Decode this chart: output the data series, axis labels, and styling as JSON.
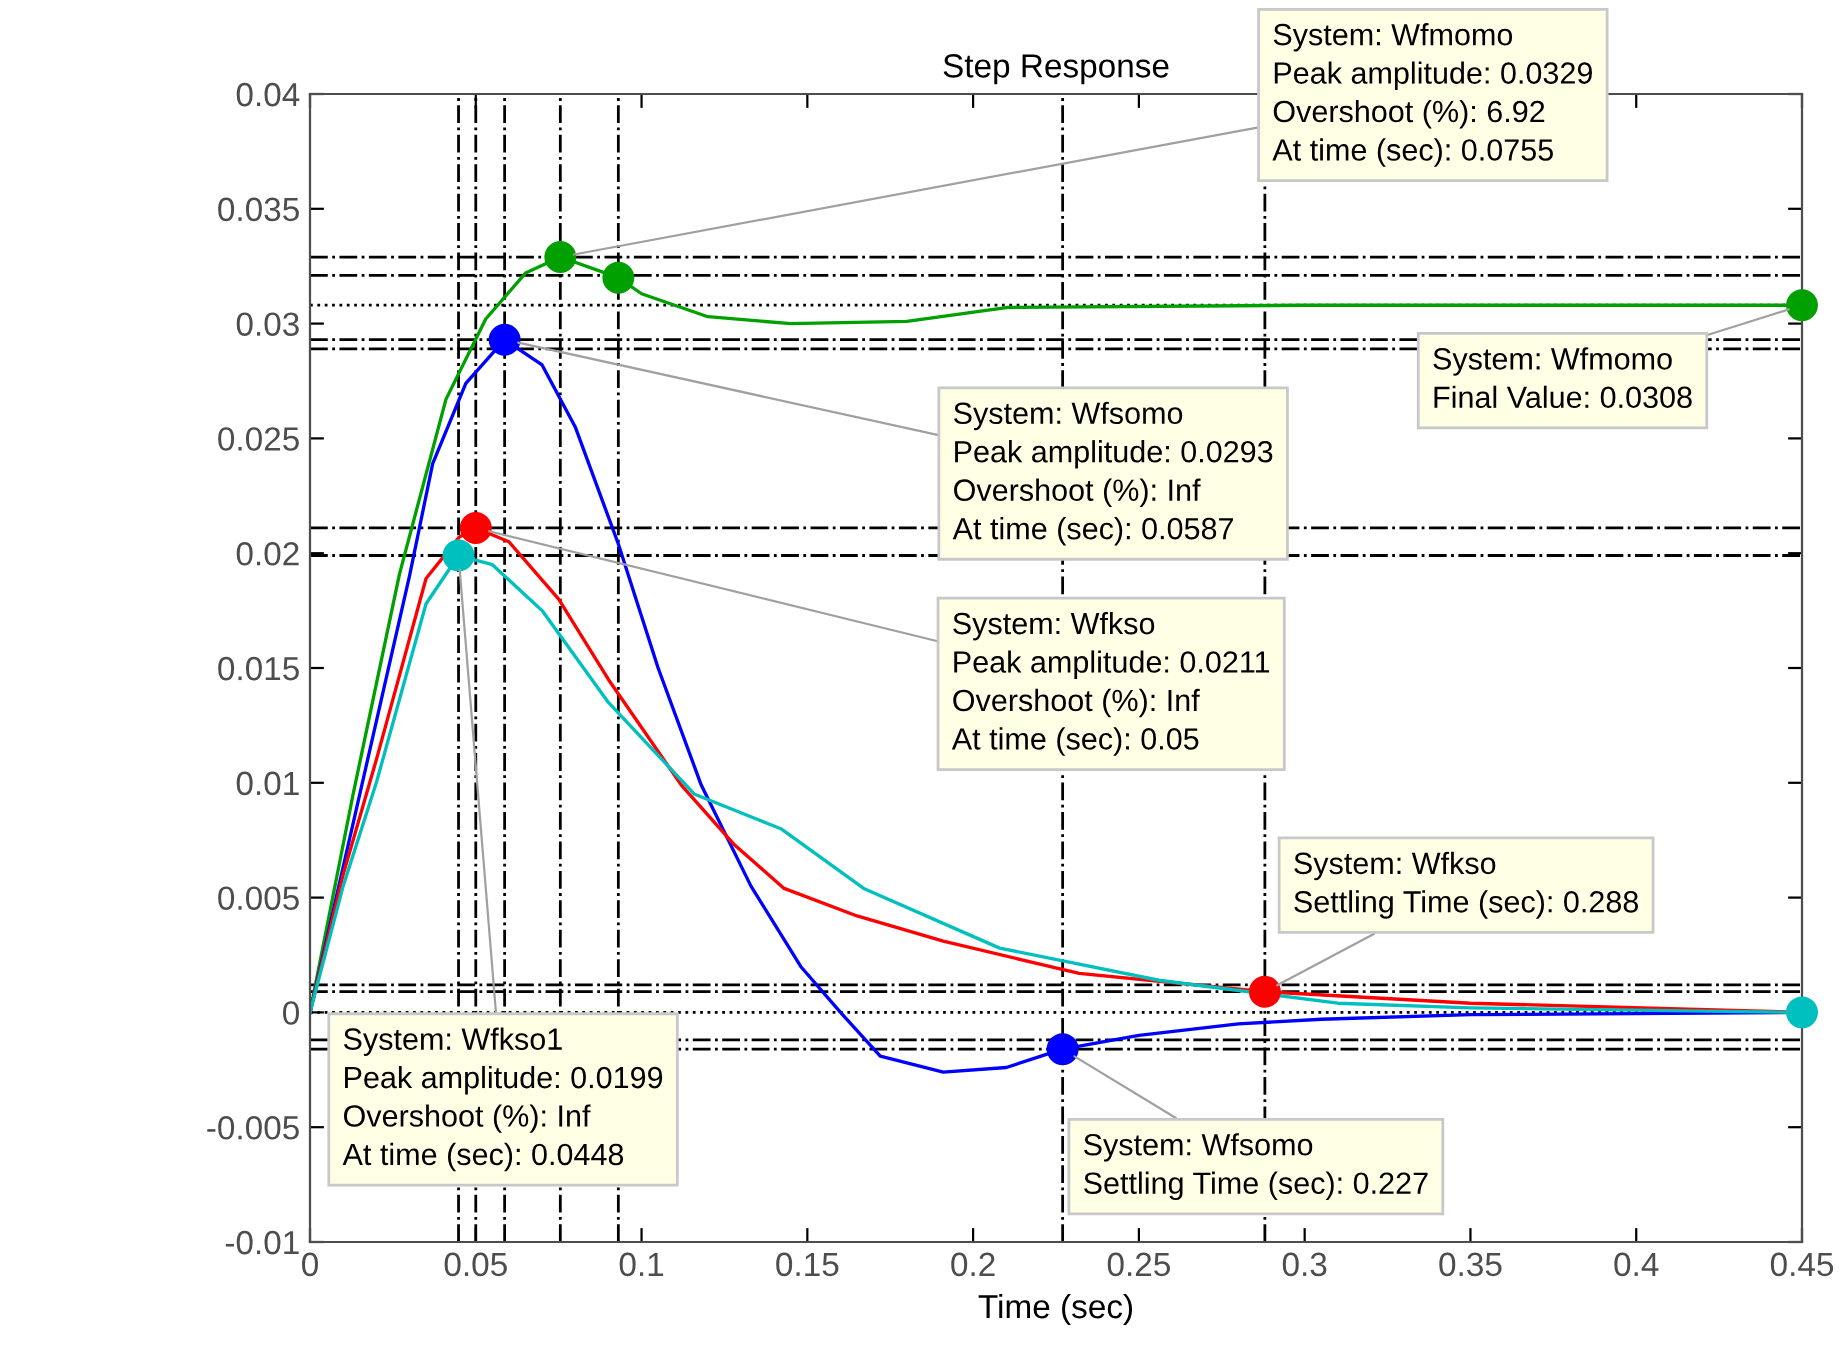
{
  "chart_data": {
    "type": "line",
    "title": "Step Response",
    "xlabel": "Time (sec)",
    "xlim": [
      0,
      0.45
    ],
    "xticks": [
      0,
      0.05,
      0.1,
      0.15,
      0.2,
      0.25,
      0.3,
      0.35,
      0.4,
      0.45
    ],
    "ylim": [
      -0.01,
      0.04
    ],
    "yticks": [
      -0.01,
      -0.005,
      0,
      0.005,
      0.01,
      0.015,
      0.02,
      0.025,
      0.03,
      0.035,
      0.04
    ],
    "grid": false,
    "marker": "none",
    "line_style": "solid",
    "series": [
      {
        "color": "#00a000",
        "x": [
          0,
          0.013,
          0.027,
          0.041,
          0.053,
          0.065,
          0.0755,
          0.093,
          0.1,
          0.12,
          0.145,
          0.18,
          0.21,
          0.3,
          0.45
        ],
        "values": [
          0,
          0.0095,
          0.0191,
          0.0267,
          0.0302,
          0.0322,
          0.0329,
          0.032,
          0.0313,
          0.0303,
          0.03,
          0.0301,
          0.0307,
          0.0308,
          0.0308
        ]
      },
      {
        "color": "#0000ff",
        "x": [
          0,
          0.015,
          0.03,
          0.037,
          0.047,
          0.0587,
          0.07,
          0.08,
          0.093,
          0.105,
          0.118,
          0.133,
          0.148,
          0.16,
          0.172,
          0.191,
          0.21,
          0.227,
          0.25,
          0.28,
          0.305,
          0.35,
          0.45
        ],
        "values": [
          0,
          0.0095,
          0.019,
          0.0239,
          0.0274,
          0.0293,
          0.0282,
          0.0255,
          0.0204,
          0.015,
          0.0099,
          0.0055,
          0.002,
          0,
          -0.0019,
          -0.0026,
          -0.0024,
          -0.0016,
          -0.001,
          -0.0005,
          -0.0003,
          -0.0001,
          0
        ]
      },
      {
        "color": "#ff0000",
        "x": [
          0,
          0.01,
          0.02,
          0.035,
          0.045,
          0.05,
          0.06,
          0.075,
          0.09,
          0.112,
          0.128,
          0.143,
          0.165,
          0.191,
          0.232,
          0.288,
          0.35,
          0.45
        ],
        "values": [
          0,
          0.006,
          0.011,
          0.0189,
          0.0207,
          0.0211,
          0.0205,
          0.018,
          0.0145,
          0.0099,
          0.0073,
          0.0054,
          0.0042,
          0.0031,
          0.0017,
          0.0009,
          0.0004,
          0
        ]
      },
      {
        "color": "#00bfbf",
        "x": [
          0,
          0.01,
          0.02,
          0.035,
          0.0448,
          0.055,
          0.07,
          0.09,
          0.116,
          0.142,
          0.167,
          0.208,
          0.256,
          0.31,
          0.35,
          0.45
        ],
        "values": [
          0,
          0.0055,
          0.01,
          0.0178,
          0.0199,
          0.0195,
          0.0175,
          0.0135,
          0.0095,
          0.008,
          0.0054,
          0.0028,
          0.0014,
          0.0004,
          0.0002,
          0
        ]
      },
      {
        "type": "scatter",
        "marker": "circle",
        "color": "#00a000",
        "x": [
          0.0755,
          0.093,
          0.45
        ],
        "values": [
          0.0329,
          0.032,
          0.0308
        ]
      },
      {
        "type": "scatter",
        "marker": "circle",
        "color": "#0000ff",
        "x": [
          0.0587,
          0.227
        ],
        "values": [
          0.0293,
          -0.0016
        ]
      },
      {
        "type": "scatter",
        "marker": "circle",
        "color": "#00bfbf",
        "x": [
          0.0448,
          0.45
        ],
        "values": [
          0.0199,
          0
        ]
      },
      {
        "type": "scatter",
        "marker": "circle",
        "color": "#ff0000",
        "x": [
          0.05,
          0.288
        ],
        "values": [
          0.0211,
          0.0009
        ]
      }
    ],
    "ref_lines": [
      {
        "axis": "x",
        "value": 0.0448,
        "line_style": "dashdot",
        "color": "#000000"
      },
      {
        "axis": "x",
        "value": 0.05,
        "line_style": "dashdot",
        "color": "#000000"
      },
      {
        "axis": "x",
        "value": 0.0587,
        "line_style": "dashdot",
        "color": "#000000"
      },
      {
        "axis": "x",
        "value": 0.0755,
        "line_style": "dashdot",
        "color": "#000000"
      },
      {
        "axis": "x",
        "value": 0.093,
        "line_style": "dashdot",
        "color": "#000000"
      },
      {
        "axis": "x",
        "value": 0.227,
        "line_style": "dashdot",
        "color": "#000000"
      },
      {
        "axis": "x",
        "value": 0.288,
        "line_style": "dashdot",
        "color": "#000000"
      },
      {
        "axis": "y",
        "value": 0.0329,
        "line_style": "dashdot",
        "color": "#000000"
      },
      {
        "axis": "y",
        "value": 0.0321,
        "line_style": "dashdot",
        "color": "#000000"
      },
      {
        "axis": "y",
        "value": 0.0308,
        "line_style": "dotted",
        "color": "#000000"
      },
      {
        "axis": "y",
        "value": 0.0293,
        "line_style": "dashdot",
        "color": "#000000"
      },
      {
        "axis": "y",
        "value": 0.0289,
        "line_style": "dashdot",
        "color": "#000000"
      },
      {
        "axis": "y",
        "value": 0.0211,
        "line_style": "dashdot",
        "color": "#000000"
      },
      {
        "axis": "y",
        "value": 0.0199,
        "line_style": "dashdot",
        "color": "#000000"
      },
      {
        "axis": "y",
        "value": 0.0012,
        "line_style": "dashdot",
        "color": "#000000"
      },
      {
        "axis": "y",
        "value": 0.0009,
        "line_style": "dashdot",
        "color": "#000000"
      },
      {
        "axis": "y",
        "value": 0,
        "line_style": "dotted",
        "color": "#000000"
      },
      {
        "axis": "y",
        "value": -0.0012,
        "line_style": "dashdot",
        "color": "#000000"
      },
      {
        "axis": "y",
        "value": -0.0016,
        "line_style": "dashdot",
        "color": "#000000"
      }
    ],
    "annotations": [
      {
        "text": "System: Wfsomo\nPeak amplitude: 0.0293\nOvershoot (%): Inf\nAt time (sec): 0.0587",
        "x": 0.0587,
        "y": 0.0293
      },
      {
        "text": "System: Wfmomo\nPeak amplitude: 0.0329\nOvershoot (%): 6.92\nAt time (sec): 0.0755",
        "x": 0.0755,
        "y": 0.0329
      },
      {
        "text": "System: Wfmomo\nFinal Value: 0.0308",
        "x": 0.45,
        "y": 0.0308
      },
      {
        "text": "System: Wfkso1\nPeak amplitude: 0.0199\nOvershoot (%): Inf\nAt time (sec): 0.0448",
        "x": 0.0448,
        "y": 0.0199
      },
      {
        "text": "System: Wfkso\nPeak amplitude: 0.0211\nOvershoot (%): Inf\nAt time (sec): 0.05",
        "x": 0.05,
        "y": 0.0211
      },
      {
        "text": "System: Wfkso\nSettling Time (sec): 0.288",
        "x": 0.288,
        "y": 0.0009
      },
      {
        "text": "System: Wfsomo\nSettling Time (sec): 0.227",
        "x": 0.227,
        "y": -0.0016
      }
    ]
  }
}
